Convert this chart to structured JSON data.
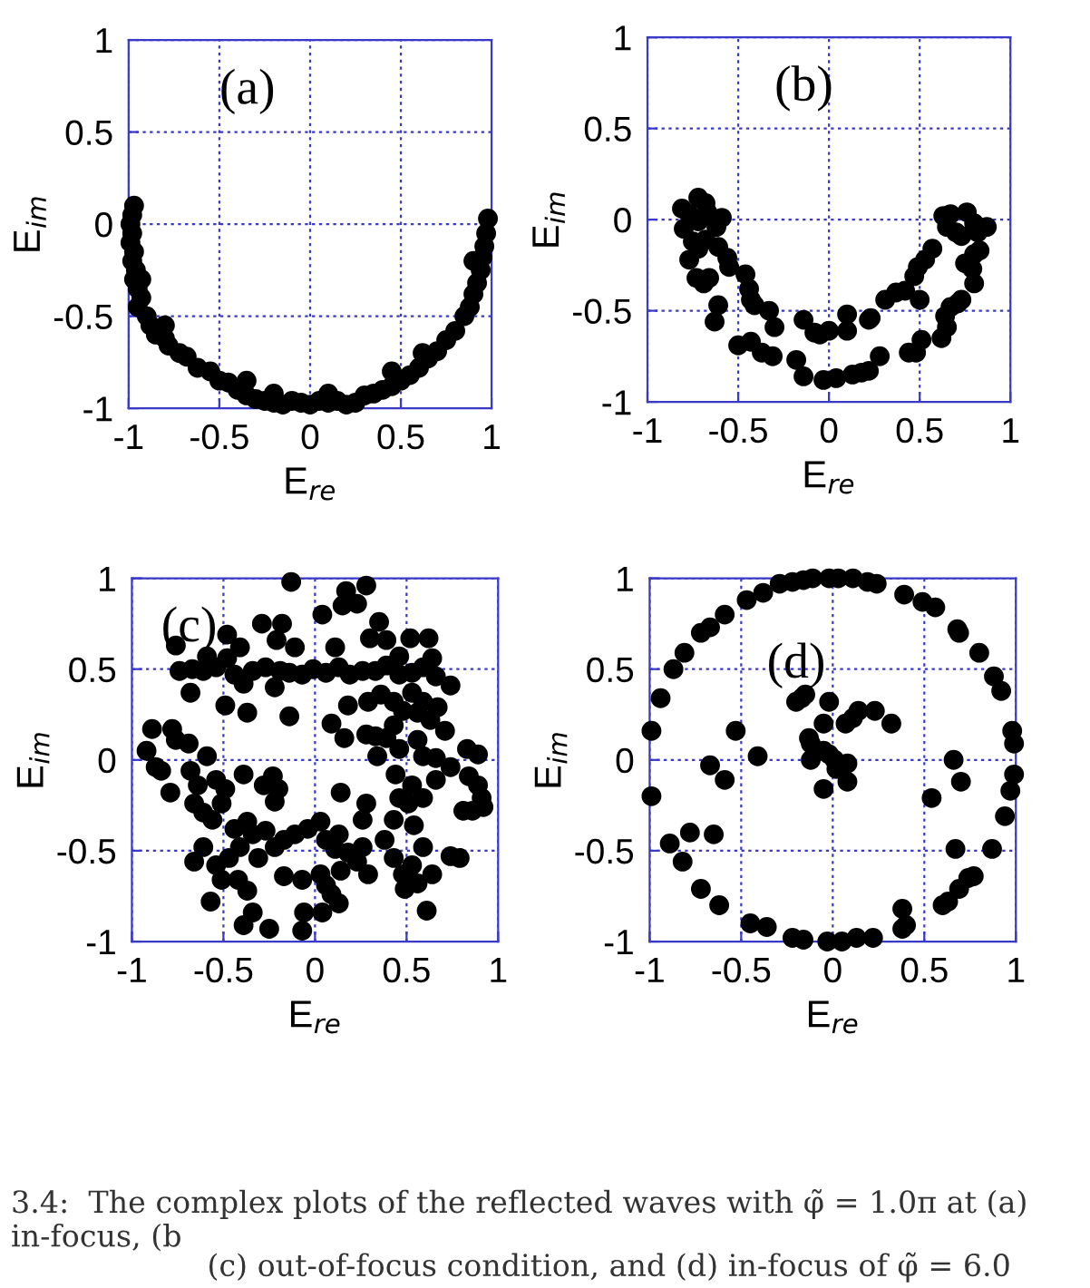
{
  "chart_data": [
    {
      "type": "scatter",
      "xlabel": "E$_{re}$",
      "ylabel": "E$_{im}$",
      "xlim": [
        -1,
        1
      ],
      "ylim": [
        -1,
        1
      ],
      "xticks": [
        -1,
        -0.5,
        0,
        0.5,
        1
      ],
      "yticks": [
        -1,
        -0.5,
        0,
        0.5,
        1
      ],
      "grid": true,
      "marker": "circle",
      "annotations": [
        "(a)"
      ],
      "series": [
        {
          "color": "#000000",
          "x": [
            -0.97,
            -0.98,
            -0.99,
            -0.98,
            -0.99,
            -0.97,
            -0.98,
            -0.96,
            -0.97,
            -0.95,
            -0.93,
            -0.95,
            -0.9,
            -0.88,
            -0.85,
            -0.8,
            -0.78,
            -0.72,
            -0.68,
            -0.62,
            -0.55,
            -0.5,
            -0.45,
            -0.4,
            -0.35,
            -0.3,
            -0.25,
            -0.2,
            -0.15,
            -0.1,
            -0.05,
            0,
            0.05,
            0.1,
            0.15,
            0.2,
            0.25,
            0.3,
            0.35,
            0.4,
            0.45,
            0.5,
            0.55,
            0.6,
            0.65,
            0.7,
            0.75,
            0.8,
            0.85,
            0.88,
            0.9,
            0.92,
            0.94,
            0.95,
            0.96,
            0.97,
            0.98,
            -0.93,
            0.9,
            -0.8,
            0.62,
            -0.35,
            0.45,
            -0.2,
            0.1
          ],
          "values": [
            0.1,
            0.05,
            0,
            -0.05,
            -0.1,
            -0.15,
            -0.2,
            -0.25,
            -0.3,
            -0.35,
            -0.4,
            -0.45,
            -0.5,
            -0.55,
            -0.6,
            -0.62,
            -0.66,
            -0.7,
            -0.72,
            -0.78,
            -0.8,
            -0.85,
            -0.86,
            -0.9,
            -0.93,
            -0.95,
            -0.96,
            -0.97,
            -0.98,
            -0.96,
            -0.97,
            -0.98,
            -0.96,
            -0.97,
            -0.96,
            -0.98,
            -0.97,
            -0.93,
            -0.92,
            -0.9,
            -0.88,
            -0.85,
            -0.82,
            -0.78,
            -0.73,
            -0.69,
            -0.63,
            -0.58,
            -0.5,
            -0.45,
            -0.38,
            -0.32,
            -0.25,
            -0.18,
            -0.12,
            -0.05,
            0.03,
            -0.3,
            -0.2,
            -0.55,
            -0.7,
            -0.85,
            -0.8,
            -0.92,
            -0.92
          ]
        }
      ]
    },
    {
      "type": "scatter",
      "xlabel": "E$_{re}$",
      "ylabel": "E$_{im}$",
      "xlim": [
        -1,
        1
      ],
      "ylim": [
        -1,
        1
      ],
      "xticks": [
        -1,
        -0.5,
        0,
        0.5,
        1
      ],
      "yticks": [
        -1,
        -0.5,
        0,
        0.5,
        1
      ],
      "grid": true,
      "marker": "circle",
      "annotations": [
        "(b)"
      ],
      "series": [
        {
          "color": "#000000",
          "x": [
            -0.81,
            -0.72,
            -0.68,
            -0.77,
            -0.8,
            -0.72,
            -0.67,
            -0.59,
            -0.75,
            -0.68,
            -0.77,
            -0.72,
            -0.62,
            -0.73,
            -0.69,
            -0.66,
            -0.61,
            -0.56,
            -0.55,
            -0.61,
            -0.63,
            -0.46,
            -0.44,
            -0.43,
            -0.41,
            -0.33,
            -0.3,
            -0.5,
            -0.43,
            -0.37,
            -0.31,
            -0.18,
            -0.14,
            -0.14,
            -0.08,
            -0.05,
            0,
            -0.03,
            0.04,
            0.1,
            0.1,
            0.13,
            0.18,
            0.22,
            0.23,
            0.22,
            0.28,
            0.31,
            0.37,
            0.42,
            0.44,
            0.48,
            0.47,
            0.49,
            0.5,
            0.51,
            0.53,
            0.57,
            0.62,
            0.64,
            0.65,
            0.67,
            0.71,
            0.73,
            0.63,
            0.67,
            0.65,
            0.7,
            0.76,
            0.8,
            0.87,
            0.82,
            0.83,
            0.8,
            0.75,
            0.79,
            0.8,
            0.73
          ],
          "values": [
            0.06,
            0.12,
            0.09,
            0.03,
            -0.05,
            -0.01,
            0.04,
            0.01,
            -0.12,
            -0.11,
            -0.22,
            -0.16,
            -0.04,
            -0.32,
            -0.35,
            -0.32,
            -0.15,
            -0.21,
            -0.26,
            -0.47,
            -0.56,
            -0.3,
            -0.38,
            -0.44,
            -0.47,
            -0.5,
            -0.59,
            -0.69,
            -0.67,
            -0.73,
            -0.75,
            -0.77,
            -0.86,
            -0.55,
            -0.62,
            -0.63,
            -0.61,
            -0.88,
            -0.87,
            -0.52,
            -0.61,
            -0.85,
            -0.84,
            -0.55,
            -0.54,
            -0.83,
            -0.75,
            -0.44,
            -0.4,
            -0.39,
            -0.73,
            -0.73,
            -0.31,
            -0.26,
            -0.44,
            -0.66,
            -0.22,
            -0.16,
            -0.65,
            -0.53,
            -0.59,
            -0.48,
            -0.46,
            -0.44,
            0.02,
            0.03,
            -0.04,
            -0.07,
            0.04,
            -0.02,
            -0.04,
            -0.07,
            -0.17,
            -0.19,
            -0.24,
            -0.27,
            -0.35,
            -0.09
          ]
        }
      ]
    },
    {
      "type": "scatter",
      "xlabel": "E$_{re}$",
      "ylabel": "E$_{im}$",
      "xlim": [
        -1,
        1
      ],
      "ylim": [
        -1,
        1
      ],
      "xticks": [
        -1,
        -0.5,
        0,
        0.5,
        1
      ],
      "yticks": [
        -1,
        -0.5,
        0,
        0.5,
        1
      ],
      "grid": true,
      "marker": "circle",
      "annotations": [
        "(c)"
      ],
      "series": [
        {
          "color": "#000000",
          "x": [
            -0.13,
            0.17,
            0.28,
            0.15,
            0.23,
            0.04,
            -0.29,
            -0.18,
            0.35,
            -0.76,
            -0.48,
            -0.21,
            -0.11,
            0.11,
            0.3,
            0.39,
            0.52,
            0.62,
            -0.59,
            -0.41,
            -0.48,
            0.46,
            0.64,
            -0.74,
            -0.67,
            -0.61,
            -0.54,
            -0.44,
            -0.39,
            -0.34,
            -0.27,
            -0.19,
            -0.14,
            -0.07,
            -0.01,
            0.06,
            0.13,
            0.19,
            0.26,
            0.33,
            0.39,
            0.46,
            0.53,
            0.59,
            0.66,
            0.74,
            -0.68,
            -0.49,
            -0.37,
            -0.22,
            -0.14,
            0.09,
            0.18,
            0.29,
            0.36,
            0.43,
            0.48,
            0.53,
            0.59,
            0.56,
            0.63,
            0.67,
            0.71,
            0.43,
            0.33,
            0.28,
            0.16,
            0.39,
            0.56,
            0.46,
            0.34,
            0.59,
            0.66,
            0.83,
            0.89,
            0.74,
            0.84,
            0.89,
            0.92,
            0.86,
            0.81,
            0.91,
            -0.92,
            -0.89,
            -0.78,
            -0.76,
            -0.69,
            -0.87,
            -0.84,
            -0.79,
            -0.68,
            -0.64,
            -0.59,
            -0.66,
            -0.61,
            -0.56,
            -0.51,
            -0.54,
            -0.49,
            -0.39,
            -0.44,
            -0.37,
            -0.34,
            -0.27,
            -0.41,
            -0.47,
            -0.54,
            -0.61,
            -0.66,
            -0.51,
            -0.42,
            -0.37,
            -0.34,
            -0.39,
            -0.25,
            -0.57,
            -0.31,
            -0.22,
            -0.17,
            -0.11,
            -0.04,
            0.03,
            -0.22,
            -0.28,
            -0.23,
            -0.2,
            -0.07,
            -0.06,
            -0.07,
            -0.17,
            0.03,
            0.06,
            0.04,
            0.09,
            0.13,
            0.14,
            0.11,
            0.06,
            0.13,
            0.18,
            0.23,
            0.26,
            0.29,
            0.14,
            0.26,
            0.28,
            0.38,
            0.43,
            0.46,
            0.44,
            0.51,
            0.53,
            0.54,
            0.43,
            0.48,
            0.53,
            0.56,
            0.49,
            0.59,
            0.61,
            0.64,
            0.74,
            0.79,
            0.66,
            0.59
          ],
          "values": [
            0.98,
            0.93,
            0.96,
            0.85,
            0.86,
            0.8,
            0.75,
            0.75,
            0.76,
            0.63,
            0.69,
            0.66,
            0.62,
            0.62,
            0.67,
            0.66,
            0.67,
            0.67,
            0.57,
            0.62,
            0.56,
            0.57,
            0.56,
            0.49,
            0.5,
            0.49,
            0.51,
            0.47,
            0.42,
            0.49,
            0.51,
            0.49,
            0.48,
            0.47,
            0.5,
            0.48,
            0.51,
            0.47,
            0.49,
            0.49,
            0.52,
            0.47,
            0.48,
            0.51,
            0.46,
            0.41,
            0.37,
            0.3,
            0.26,
            0.4,
            0.24,
            0.2,
            0.3,
            0.32,
            0.36,
            0.32,
            0.27,
            0.37,
            0.32,
            0.26,
            0.22,
            0.29,
            0.16,
            0.19,
            0.13,
            0.14,
            0.12,
            0.12,
            0.11,
            0.06,
            0.02,
            0.02,
            0.01,
            0.06,
            0.03,
            -0.04,
            -0.09,
            -0.14,
            -0.26,
            -0.28,
            -0.28,
            -0.21,
            0.05,
            0.17,
            0.17,
            0.11,
            0.09,
            -0.04,
            -0.06,
            -0.18,
            -0.06,
            -0.14,
            0.02,
            -0.24,
            -0.29,
            -0.33,
            -0.24,
            -0.11,
            -0.16,
            -0.08,
            -0.38,
            -0.34,
            -0.41,
            -0.39,
            -0.48,
            -0.54,
            -0.58,
            -0.48,
            -0.56,
            -0.66,
            -0.66,
            -0.72,
            -0.84,
            -0.91,
            -0.93,
            -0.78,
            -0.54,
            -0.48,
            -0.44,
            -0.41,
            -0.38,
            -0.34,
            -0.23,
            -0.14,
            -0.09,
            -0.16,
            -0.94,
            -0.84,
            -0.66,
            -0.64,
            -0.63,
            -0.69,
            -0.84,
            -0.74,
            -0.79,
            -0.61,
            -0.49,
            -0.44,
            -0.41,
            -0.51,
            -0.56,
            -0.48,
            -0.63,
            -0.18,
            -0.33,
            -0.24,
            -0.44,
            -0.33,
            -0.21,
            -0.08,
            -0.24,
            -0.14,
            -0.36,
            -0.54,
            -0.63,
            -0.58,
            -0.68,
            -0.71,
            -0.48,
            -0.83,
            -0.63,
            -0.53,
            -0.54,
            -0.11,
            -0.21
          ]
        }
      ]
    },
    {
      "type": "scatter",
      "xlabel": "E$_{re}$",
      "ylabel": "E$_{im}$",
      "xlim": [
        -1,
        1
      ],
      "ylim": [
        -1,
        1
      ],
      "xticks": [
        -1,
        -0.5,
        0,
        0.5,
        1
      ],
      "yticks": [
        -1,
        -0.5,
        0,
        0.5,
        1
      ],
      "grid": true,
      "marker": "circle",
      "annotations": [
        "(d)",
        "3.4:  The complex plots of the reflected waves with φ̃ = 1.0π at (a) in-focus, (b",
        "(c) out-of-focus condition, and (d) in-focus of φ̃ = 6.0"
      ],
      "series": [
        {
          "color": "#000000",
          "x": [
            -0.29,
            -0.22,
            -0.16,
            -0.11,
            -0.02,
            0.03,
            0.11,
            0.19,
            0.24,
            -0.38,
            -0.47,
            0.39,
            0.49,
            0.56,
            -0.59,
            -0.67,
            -0.72,
            0.68,
            0.69,
            -0.81,
            0.8,
            -0.87,
            0.88,
            0.92,
            -0.94,
            -0.99,
            0.98,
            0.99,
            0.99,
            0.97,
            -0.99,
            0.94,
            0.87,
            -0.89,
            -0.82,
            -0.72,
            -0.62,
            -0.45,
            -0.36,
            -0.22,
            -0.16,
            -0.03,
            0.05,
            0.13,
            0.22,
            0.38,
            0.4,
            0.38,
            0.6,
            0.63,
            0.69,
            0.74,
            0.77,
            -0.78,
            -0.65,
            -0.67,
            -0.59,
            -0.53,
            -0.41,
            -0.2,
            -0.15,
            -0.17,
            -0.02,
            -0.05,
            -0.13,
            -0.12,
            -0.12,
            -0.05,
            -0.02,
            0.01,
            0.02,
            -0.05,
            0.08,
            0.08,
            0.07,
            0.11,
            0.14,
            0.23,
            0.32,
            0.54,
            0.67,
            0.7,
            0.66
          ],
          "values": [
            0.97,
            0.98,
            0.99,
            1.0,
            1.0,
            1.0,
            1.0,
            0.98,
            0.97,
            0.92,
            0.88,
            0.91,
            0.87,
            0.84,
            0.8,
            0.73,
            0.7,
            0.72,
            0.7,
            0.59,
            0.59,
            0.5,
            0.46,
            0.38,
            0.34,
            0.16,
            0.16,
            0.09,
            -0.08,
            -0.17,
            -0.2,
            -0.31,
            -0.49,
            -0.46,
            -0.56,
            -0.71,
            -0.8,
            -0.9,
            -0.92,
            -0.98,
            -0.99,
            -1.0,
            -1.0,
            -0.98,
            -0.98,
            -0.93,
            -0.91,
            -0.82,
            -0.8,
            -0.78,
            -0.71,
            -0.65,
            -0.64,
            -0.4,
            -0.41,
            -0.03,
            -0.11,
            0.16,
            0.02,
            0.32,
            0.36,
            0.34,
            0.32,
            0.2,
            0.12,
            0.09,
            0.0,
            0.05,
            0.03,
            0.0,
            -0.05,
            -0.16,
            -0.02,
            -0.12,
            0.2,
            0.23,
            0.27,
            0.27,
            0.2,
            -0.21,
            -0.49,
            -0.12,
            0.0
          ]
        }
      ]
    }
  ]
}
